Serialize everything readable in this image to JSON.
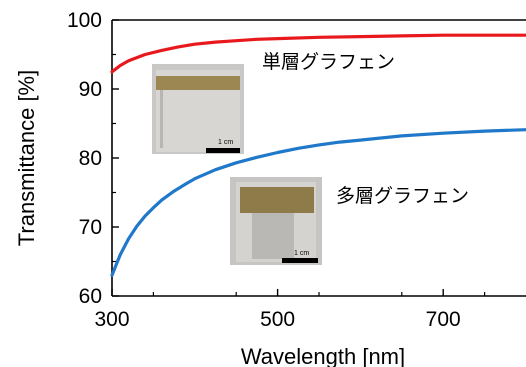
{
  "chart_data": {
    "type": "line",
    "title": "",
    "xlabel": "Wavelength [nm]",
    "ylabel": "Transmittance [%]",
    "xlim": [
      300,
      800
    ],
    "ylim": [
      60,
      100
    ],
    "x_ticks": [
      300,
      500,
      700
    ],
    "x_tick_labels": [
      "300",
      "500",
      "700"
    ],
    "y_ticks": [
      60,
      70,
      80,
      90,
      100
    ],
    "y_tick_labels": [
      "60",
      "70",
      "80",
      "90",
      "100"
    ],
    "grid": false,
    "legend": "none",
    "series": [
      {
        "name": "単層グラフェン",
        "color": "#e8191d",
        "x": [
          300,
          310,
          320,
          340,
          360,
          380,
          400,
          425,
          450,
          475,
          500,
          550,
          600,
          650,
          700,
          750,
          800
        ],
        "y": [
          92.5,
          93.4,
          94.1,
          95.0,
          95.6,
          96.1,
          96.5,
          96.8,
          97.0,
          97.2,
          97.3,
          97.5,
          97.6,
          97.7,
          97.8,
          97.8,
          97.8
        ]
      },
      {
        "name": "多層グラフェン",
        "color": "#1f78c9",
        "x": [
          300,
          305,
          310,
          320,
          330,
          340,
          350,
          360,
          375,
          390,
          400,
          425,
          450,
          475,
          500,
          525,
          550,
          575,
          600,
          650,
          700,
          750,
          800
        ],
        "y": [
          63.0,
          64.5,
          66.0,
          68.3,
          70.1,
          71.6,
          72.8,
          73.9,
          75.2,
          76.3,
          77.0,
          78.3,
          79.3,
          80.1,
          80.8,
          81.4,
          81.9,
          82.3,
          82.6,
          83.2,
          83.6,
          83.9,
          84.1
        ]
      }
    ],
    "annotations": [
      {
        "text": "単層グラフェン",
        "series": 0
      },
      {
        "text": "多層グラフェン",
        "series": 1
      }
    ],
    "insets": [
      {
        "scale_text": "1 cm"
      },
      {
        "scale_text": "1 cm"
      }
    ]
  }
}
